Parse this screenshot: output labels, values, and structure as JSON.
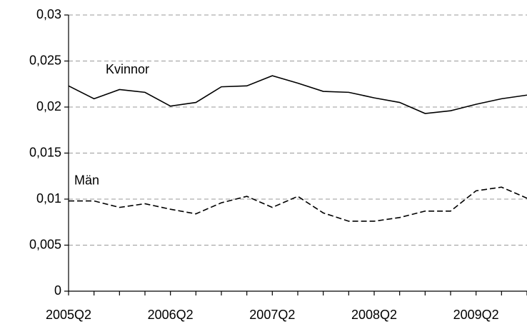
{
  "chart_data": {
    "type": "line",
    "categories": [
      "2005Q2",
      null,
      null,
      null,
      "2006Q2",
      null,
      null,
      null,
      "2007Q2",
      null,
      null,
      null,
      "2008Q2",
      null,
      null,
      null,
      "2009Q2",
      null,
      null
    ],
    "series": [
      {
        "name": "Kvinnor",
        "color": "#000000",
        "line_style": "solid",
        "values": [
          0.0223,
          0.0209,
          0.0219,
          0.0216,
          0.0201,
          0.0205,
          0.0222,
          0.0223,
          0.0234,
          0.0226,
          0.0217,
          0.0216,
          0.021,
          0.0205,
          0.0193,
          0.0196,
          0.0203,
          0.0209,
          0.0213
        ]
      },
      {
        "name": "Män",
        "color": "#000000",
        "line_style": "dashed",
        "values": [
          0.0098,
          0.0098,
          0.0091,
          0.0095,
          0.0089,
          0.0084,
          0.0096,
          0.0103,
          0.0091,
          0.0103,
          0.0085,
          0.0076,
          0.0076,
          0.008,
          0.0087,
          0.0087,
          0.0109,
          0.0113,
          0.0101
        ]
      }
    ],
    "ylim": [
      0,
      0.03
    ],
    "yticks": [
      0,
      {
        "value": 0.005,
        "label": "0,005"
      },
      {
        "value": 0.01,
        "label": "0,01"
      },
      {
        "value": 0.015,
        "label": "0,015"
      },
      {
        "value": 0.02,
        "label": "0,02"
      },
      {
        "value": 0.025,
        "label": "0,025"
      },
      {
        "value": 0.03,
        "label": "0,03"
      }
    ],
    "grid": true
  }
}
